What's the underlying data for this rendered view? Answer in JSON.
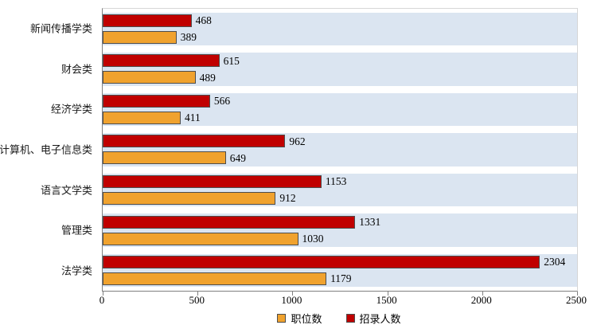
{
  "chart_data": {
    "type": "bar",
    "orientation": "horizontal",
    "title": "",
    "categories": [
      "新闻传播学类",
      "财会类",
      "经济学类",
      "计算机、电子信息类",
      "语言文学类",
      "管理类",
      "法学类"
    ],
    "series": [
      {
        "name": "职位数",
        "color": "#F0A22E",
        "values": [
          389,
          489,
          411,
          649,
          912,
          1030,
          1179
        ]
      },
      {
        "name": "招录人数",
        "color": "#C00000",
        "values": [
          468,
          615,
          566,
          962,
          1153,
          1331,
          2304
        ]
      }
    ],
    "x_axis": {
      "min": 0,
      "max": 2500,
      "ticks": [
        0,
        500,
        1000,
        1500,
        2000,
        2500
      ]
    },
    "band_color": "#DBE5F1",
    "grid": false,
    "legend_position": "bottom"
  }
}
